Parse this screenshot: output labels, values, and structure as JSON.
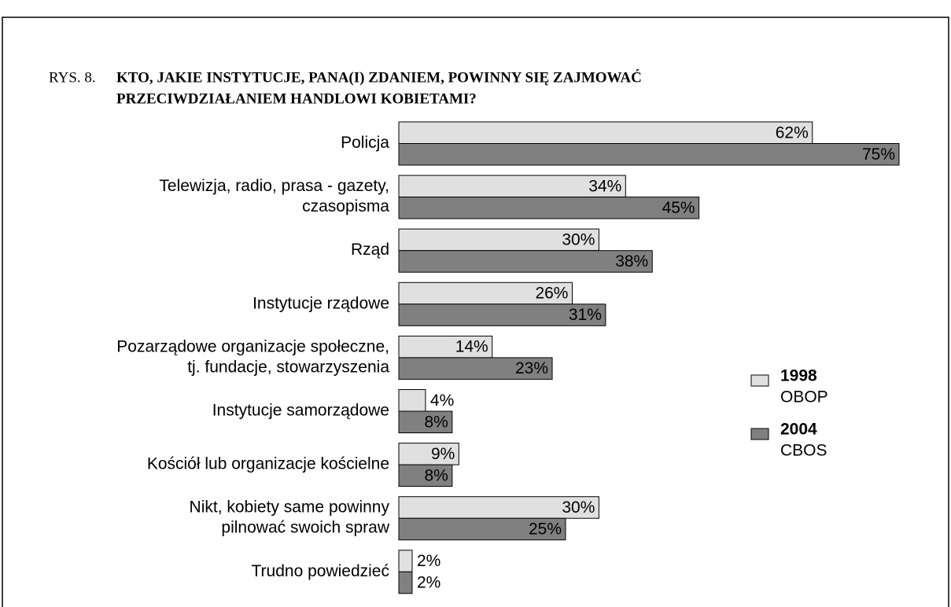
{
  "chart_data": {
    "type": "bar",
    "orientation": "horizontal",
    "figure_label": "RYS. 8.",
    "title": [
      "KTO, JAKIE INSTYTUCJE, PANA(I) ZDANIEM, POWINNY SIĘ ZAJMOWAĆ",
      "PRZECIWDZIAŁANIEM HANDLOWI KOBIETAMI?"
    ],
    "categories": [
      [
        "Policja"
      ],
      [
        "Telewizja, radio, prasa - gazety,",
        "czasopisma"
      ],
      [
        "Rząd"
      ],
      [
        "Instytucje rządowe"
      ],
      [
        "Pozarządowe organizacje społeczne,",
        "tj. fundacje, stowarzyszenia"
      ],
      [
        "Instytucje samorządowe"
      ],
      [
        "Kościół lub organizacje kościelne"
      ],
      [
        "Nikt, kobiety same powinny",
        "pilnować swoich spraw"
      ],
      [
        "Trudno powiedzieć"
      ]
    ],
    "series": [
      {
        "name": "1998",
        "source": "OBOP",
        "color": "#e0e0e0",
        "label_color": "#000000",
        "values": [
          62,
          34,
          30,
          26,
          14,
          4,
          9,
          30,
          2
        ],
        "value_labels": [
          "62%",
          "34%",
          "30%",
          "26%",
          "14%",
          "4%",
          "9%",
          "30%",
          "2%"
        ]
      },
      {
        "name": "2004",
        "source": "CBOS",
        "color": "#808080",
        "label_color": "#ffffff",
        "values": [
          75,
          45,
          38,
          31,
          23,
          8,
          8,
          25,
          2
        ],
        "value_labels": [
          "75%",
          "45%",
          "38%",
          "31%",
          "23%",
          "8%",
          "8%",
          "25%",
          "2%"
        ]
      }
    ],
    "xlim": [
      0,
      75
    ],
    "legend": "right"
  }
}
